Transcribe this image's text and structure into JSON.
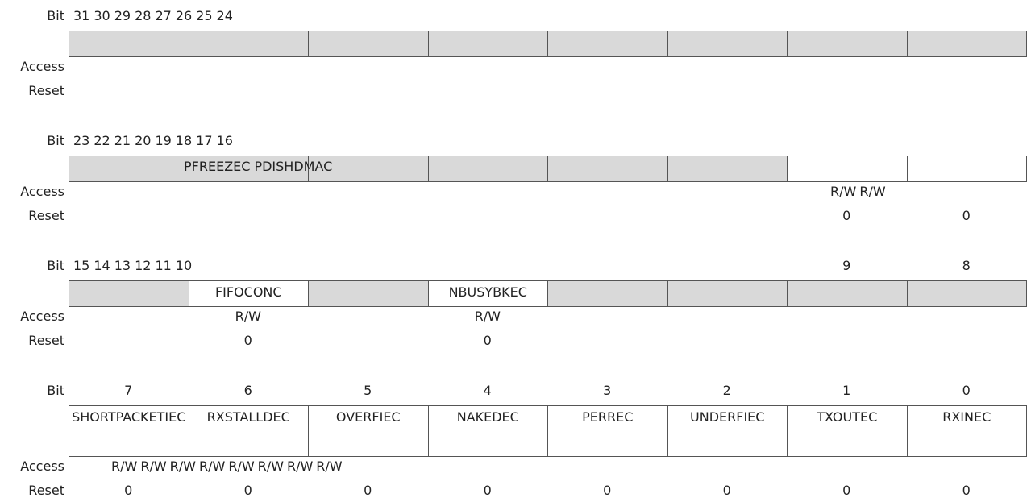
{
  "row_labels": {
    "bit": "Bit",
    "access": "Access",
    "reset": "Reset"
  },
  "registers": [
    {
      "bits": [
        "31",
        "30",
        "29",
        "28",
        "27",
        "26",
        "25",
        "24"
      ],
      "fields": [
        {
          "name": null,
          "shaded": true
        },
        {
          "name": null,
          "shaded": true
        },
        {
          "name": null,
          "shaded": true
        },
        {
          "name": null,
          "shaded": true
        },
        {
          "name": null,
          "shaded": true
        },
        {
          "name": null,
          "shaded": true
        },
        {
          "name": null,
          "shaded": true
        },
        {
          "name": null,
          "shaded": true
        }
      ],
      "access": [
        null,
        null,
        null,
        null,
        null,
        null,
        null,
        null
      ],
      "reset": [
        null,
        null,
        null,
        null,
        null,
        null,
        null,
        null
      ]
    },
    {
      "bits": [
        "23",
        "22",
        "21",
        "20",
        "19",
        "18",
        "17",
        "16"
      ],
      "fields": [
        {
          "name": null,
          "shaded": true
        },
        {
          "name": "PFREEZEC",
          "shaded": true
        },
        {
          "name": "PDISHDMAC",
          "shaded": true
        },
        {
          "name": null,
          "shaded": true
        },
        {
          "name": null,
          "shaded": true
        },
        {
          "name": null,
          "shaded": true
        },
        {
          "name": null,
          "shaded": false
        },
        {
          "name": null,
          "shaded": false
        }
      ],
      "access": [
        null,
        null,
        null,
        null,
        null,
        null,
        "R/W",
        "R/W"
      ],
      "reset": [
        null,
        null,
        null,
        null,
        null,
        null,
        "0",
        "0"
      ]
    },
    {
      "bits": [
        "15",
        "14",
        "13",
        "12",
        "11",
        "10",
        "9",
        "8"
      ],
      "fields": [
        {
          "name": null,
          "shaded": true
        },
        {
          "name": "FIFOCONC",
          "shaded": false
        },
        {
          "name": null,
          "shaded": true
        },
        {
          "name": "NBUSYBKEC",
          "shaded": false
        },
        {
          "name": null,
          "shaded": true
        },
        {
          "name": null,
          "shaded": true
        },
        {
          "name": null,
          "shaded": true
        },
        {
          "name": null,
          "shaded": true
        }
      ],
      "access": [
        null,
        "R/W",
        null,
        "R/W",
        null,
        null,
        null,
        null
      ],
      "reset": [
        null,
        "0",
        null,
        "0",
        null,
        null,
        null,
        null
      ]
    },
    {
      "bits": [
        "7",
        "6",
        "5",
        "4",
        "3",
        "2",
        "1",
        "0"
      ],
      "fields": [
        {
          "name": "SHORTPACKETIEC",
          "shaded": false
        },
        {
          "name": "RXSTALLDEC",
          "shaded": false
        },
        {
          "name": "OVERFIEC",
          "shaded": false
        },
        {
          "name": "NAKEDEC",
          "shaded": false
        },
        {
          "name": "PERREC",
          "shaded": false
        },
        {
          "name": "UNDERFIEC",
          "shaded": false
        },
        {
          "name": "TXOUTEC",
          "shaded": false
        },
        {
          "name": "RXINEC",
          "shaded": false
        }
      ],
      "access": [
        "R/W",
        "R/W",
        "R/W",
        "R/W",
        "R/W",
        "R/W",
        "R/W",
        "R/W"
      ],
      "reset": [
        "0",
        "0",
        "0",
        "0",
        "0",
        "0",
        "0",
        "0"
      ]
    }
  ]
}
